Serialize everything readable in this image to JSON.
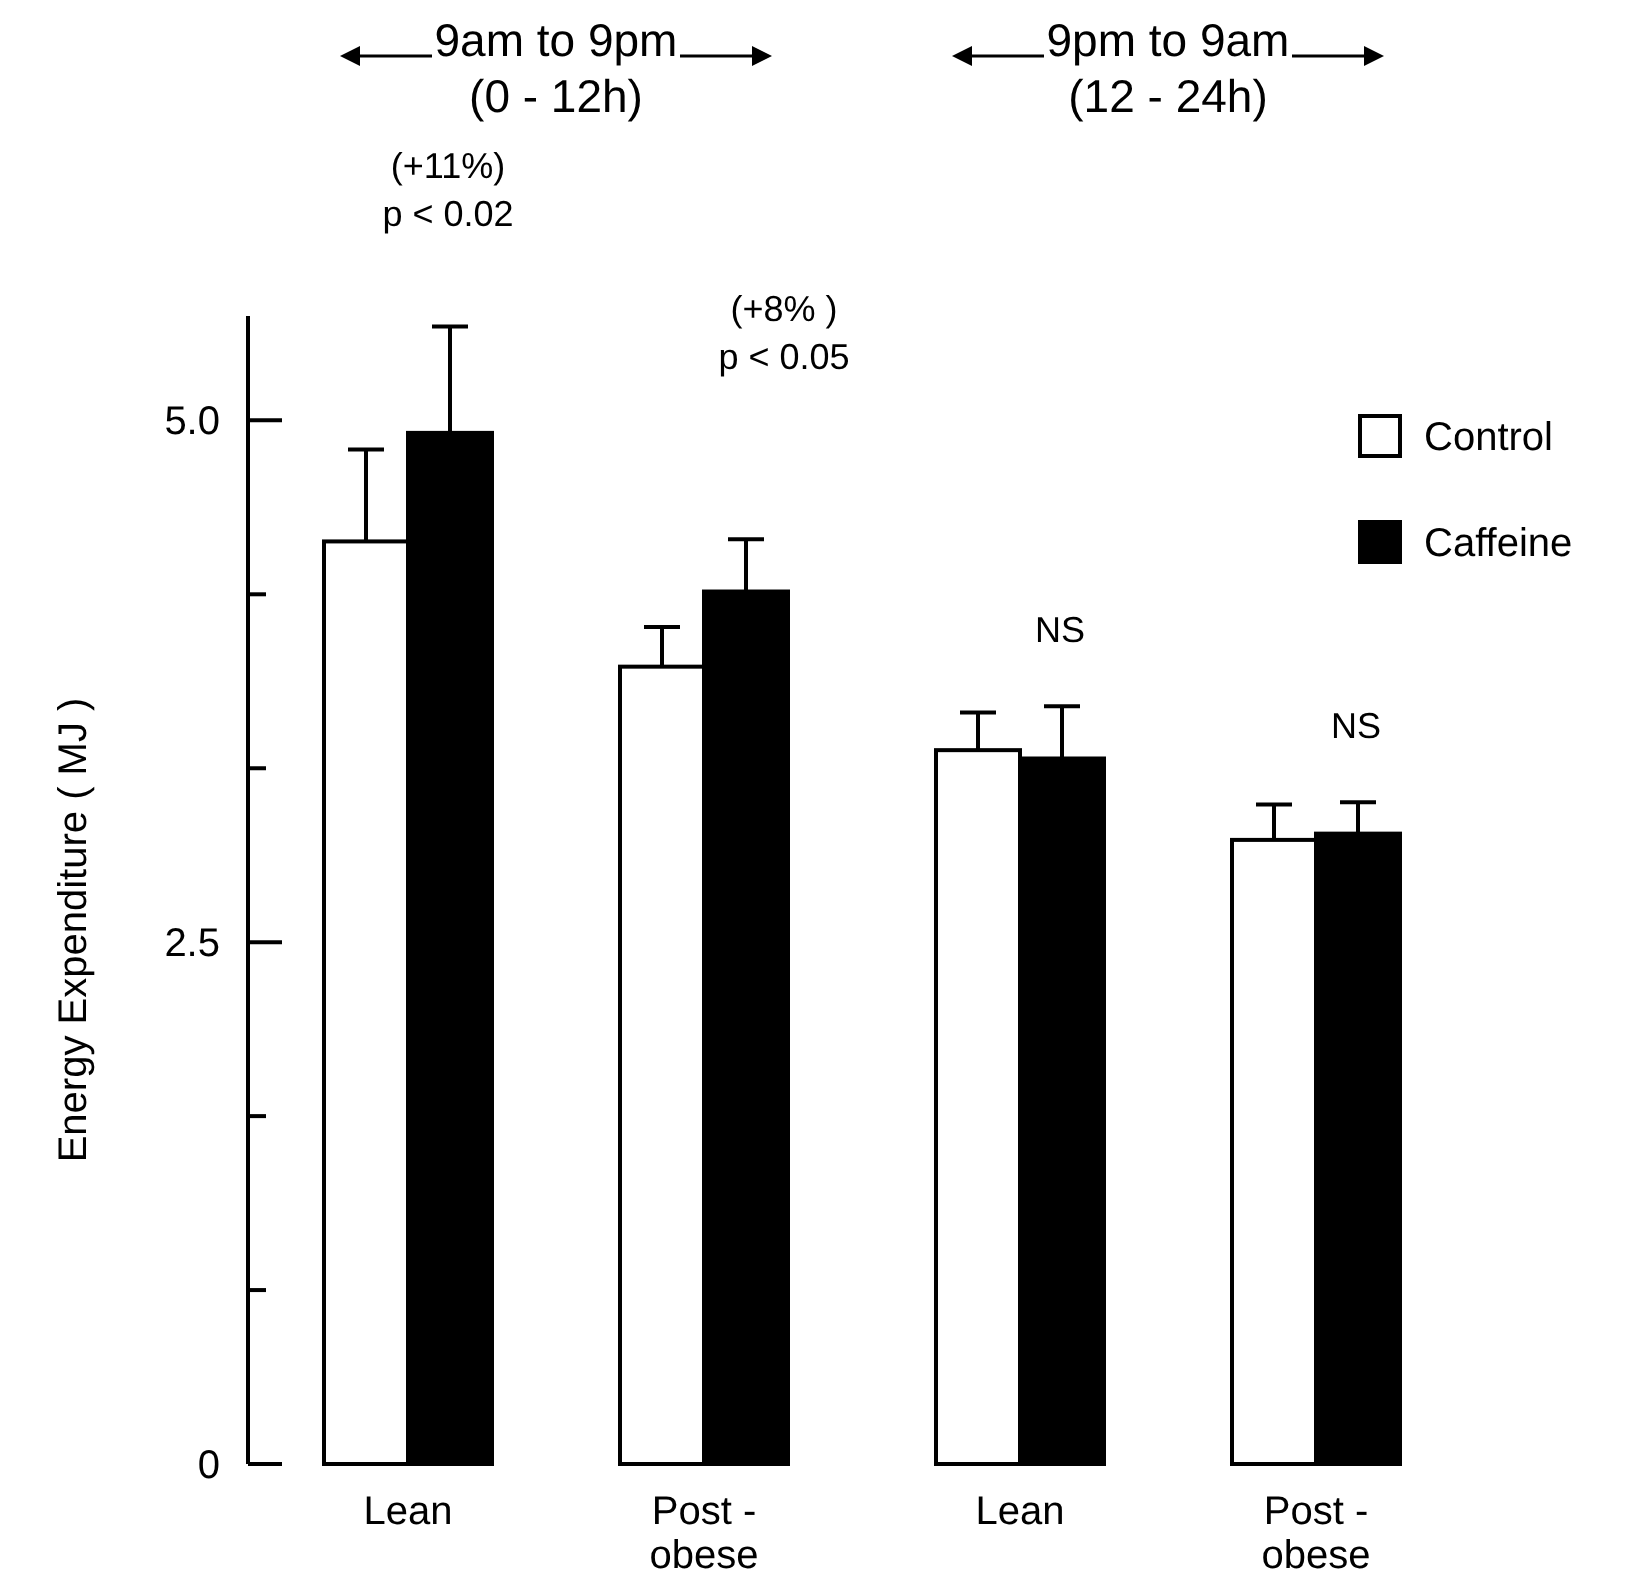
{
  "chart_data": {
    "type": "bar",
    "ylabel": "Energy Expenditure ( MJ )",
    "categories": [
      "Lean",
      "Post -\nobese",
      "Lean",
      "Post -\nobese"
    ],
    "series": [
      {
        "name": "Control",
        "color": "#ffffff",
        "values": [
          4.42,
          3.82,
          3.42,
          2.99
        ],
        "errors": [
          [
            4.42,
            4.86
          ],
          [
            3.82,
            4.01
          ],
          [
            3.42,
            3.6
          ],
          [
            2.99,
            3.16
          ]
        ]
      },
      {
        "name": "Caffeine",
        "color": "#000000",
        "values": [
          4.94,
          4.18,
          3.38,
          3.02
        ],
        "errors": [
          [
            4.94,
            5.45
          ],
          [
            4.18,
            4.43
          ],
          [
            3.38,
            3.63
          ],
          [
            3.02,
            3.17
          ]
        ]
      }
    ],
    "ylim": [
      0,
      5.5
    ],
    "yticks": [
      0,
      {
        "value": 0.8333,
        "label": null
      },
      {
        "value": 1.6667,
        "label": null
      },
      2.5,
      {
        "value": 3.3333,
        "label": null
      },
      {
        "value": 4.1667,
        "label": null
      },
      {
        "value": 5,
        "label": "5.0"
      }
    ],
    "annotations": [
      "9am to 9pm\n(0 - 12h)",
      "9pm to 9am\n(12 - 24h)",
      "(+11%)\np < 0.02",
      "(+8% )\np < 0.05",
      "NS",
      "NS"
    ],
    "legend": "top right"
  }
}
